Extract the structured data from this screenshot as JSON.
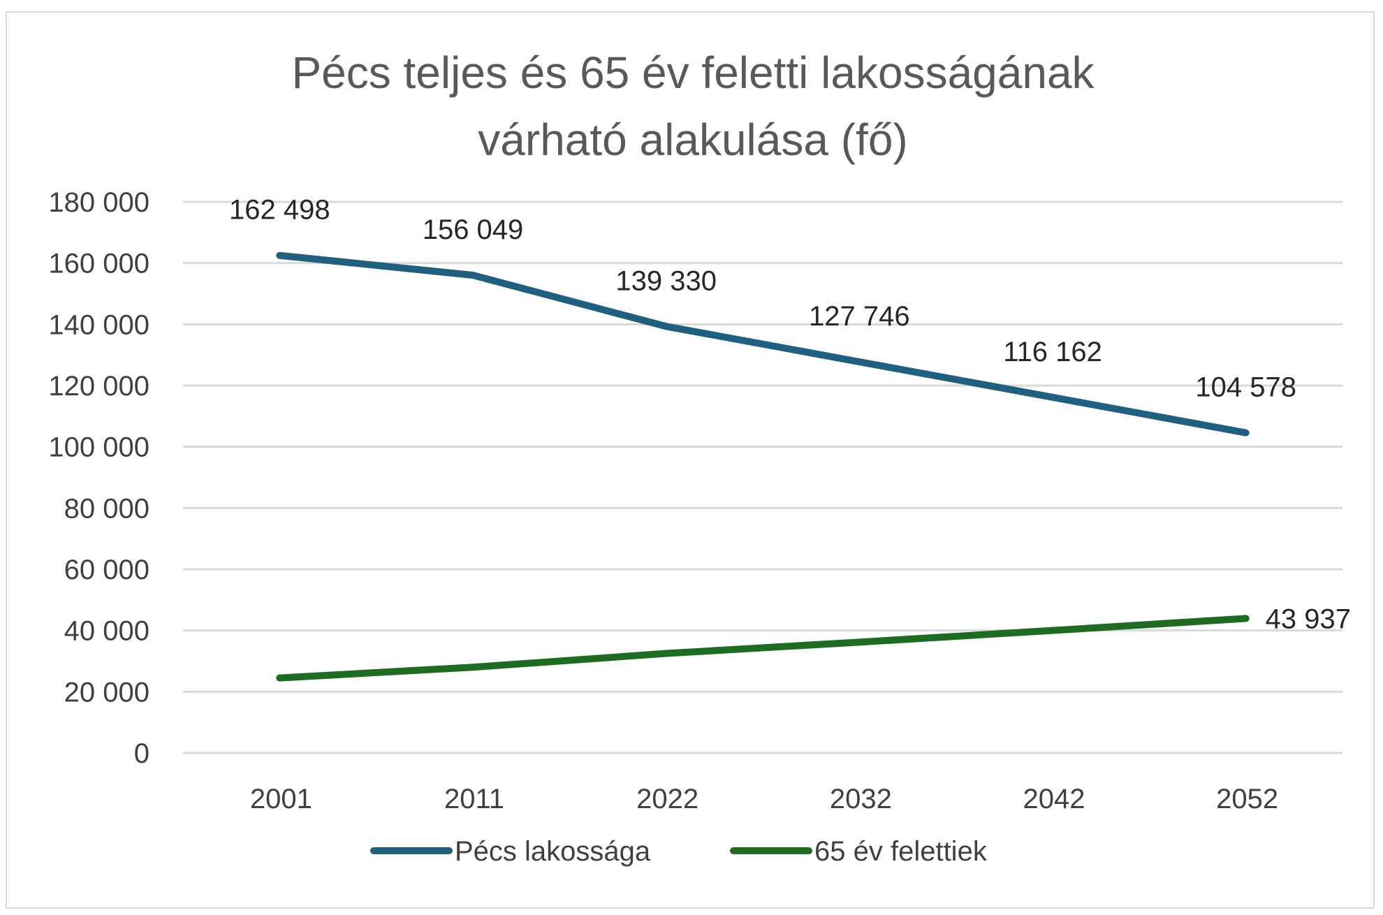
{
  "chart_data": {
    "type": "line",
    "title_lines": [
      "Pécs teljes és 65 év feletti lakosságának",
      "várható alakulása (fő)"
    ],
    "categories": [
      "2001",
      "2011",
      "2022",
      "2032",
      "2042",
      "2052"
    ],
    "ylim": [
      0,
      180000
    ],
    "y_ticks": [
      {
        "value": 0,
        "label": "0"
      },
      {
        "value": 20000,
        "label": "20 000"
      },
      {
        "value": 40000,
        "label": "40 000"
      },
      {
        "value": 60000,
        "label": "60 000"
      },
      {
        "value": 80000,
        "label": "80 000"
      },
      {
        "value": 100000,
        "label": "100 000"
      },
      {
        "value": 120000,
        "label": "120 000"
      },
      {
        "value": 140000,
        "label": "140 000"
      },
      {
        "value": 160000,
        "label": "160 000"
      },
      {
        "value": 180000,
        "label": "180 000"
      }
    ],
    "grid": true,
    "legend_position": "bottom",
    "series": [
      {
        "name": "Pécs lakossága",
        "color": "#1f5f80",
        "values": [
          162498,
          156049,
          139330,
          127746,
          116162,
          104578
        ],
        "labels": [
          "162 498",
          "156 049",
          "139 330",
          "127 746",
          "116 162",
          "104 578"
        ],
        "label_position": "above"
      },
      {
        "name": "65 év felettiek",
        "color": "#1e6b22",
        "values": [
          24500,
          28000,
          32500,
          36200,
          40000,
          43937
        ],
        "labels": [
          null,
          null,
          null,
          null,
          null,
          "43 937"
        ],
        "label_position": "right"
      }
    ]
  }
}
